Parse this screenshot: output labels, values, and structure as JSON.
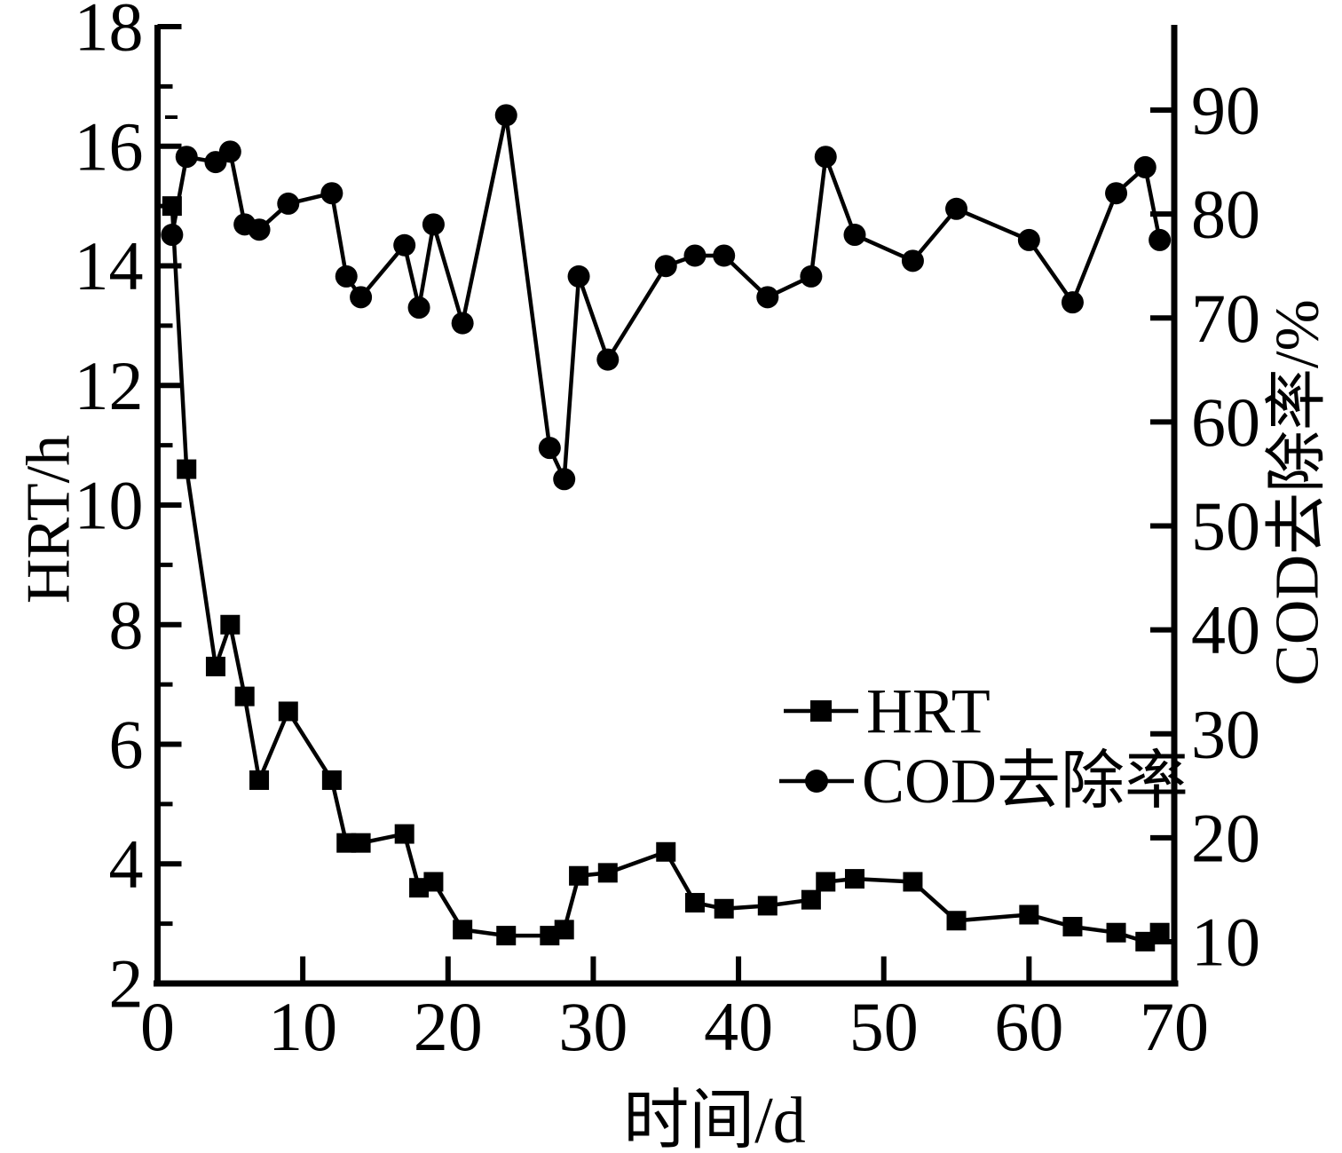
{
  "figure": {
    "background": "#ffffff",
    "ink_color": "#000000"
  },
  "chart_data": {
    "type": "line",
    "title": "",
    "xlabel": "时间/d",
    "ylabel_left": "HRT/h",
    "ylabel_right": "COD去除率/%",
    "grid": "off",
    "x_axis": {
      "min": 0,
      "max": 70,
      "major_ticks": [
        0,
        10,
        20,
        30,
        40,
        50,
        60,
        70
      ],
      "tick_labels": [
        "0",
        "10",
        "20",
        "30",
        "40",
        "50",
        "60",
        "70"
      ]
    },
    "y_left_axis": {
      "min": 2,
      "max": 18,
      "major_ticks": [
        2,
        4,
        6,
        8,
        10,
        12,
        14,
        16,
        18
      ],
      "minor_ticks": [
        3,
        5,
        7,
        9,
        11,
        13,
        15,
        17
      ],
      "tick_labels": [
        "2",
        "4",
        "6",
        "8",
        "10",
        "12",
        "14",
        "16",
        "18"
      ]
    },
    "y_right_axis": {
      "min": 6,
      "max": 98,
      "major_ticks": [
        10,
        20,
        30,
        40,
        50,
        60,
        70,
        80,
        90
      ],
      "tick_labels": [
        "10",
        "20",
        "30",
        "40",
        "50",
        "60",
        "70",
        "80",
        "90"
      ]
    },
    "legend": {
      "position": "inside-right-middle",
      "entries": [
        {
          "label": "HRT",
          "marker": "square",
          "axis": "left"
        },
        {
          "label": "COD去除率",
          "marker": "circle",
          "axis": "right"
        }
      ]
    },
    "series": [
      {
        "name": "HRT",
        "axis": "left",
        "marker": "square",
        "color": "#000000",
        "x": [
          1,
          2,
          4,
          5,
          6,
          7,
          9,
          12,
          13,
          14,
          17,
          18,
          19,
          21,
          24,
          27,
          28,
          29,
          31,
          35,
          37,
          39,
          42,
          45,
          46,
          48,
          52,
          55,
          60,
          63,
          66,
          68,
          69
        ],
        "y": [
          15.0,
          10.6,
          7.3,
          8.0,
          6.8,
          5.4,
          6.55,
          5.4,
          4.35,
          4.35,
          4.5,
          3.6,
          3.7,
          2.9,
          2.8,
          2.8,
          2.9,
          3.8,
          3.85,
          4.2,
          3.35,
          3.25,
          3.3,
          3.4,
          3.7,
          3.75,
          3.7,
          3.05,
          3.15,
          2.95,
          2.85,
          2.7,
          2.85
        ]
      },
      {
        "name": "COD去除率",
        "axis": "right",
        "marker": "circle",
        "color": "#000000",
        "x": [
          1,
          2,
          4,
          5,
          6,
          7,
          9,
          12,
          13,
          14,
          17,
          18,
          19,
          21,
          24,
          27,
          28,
          29,
          31,
          35,
          37,
          39,
          42,
          45,
          46,
          48,
          52,
          55,
          60,
          63,
          66,
          68,
          69
        ],
        "y": [
          78,
          85.5,
          85,
          86,
          79,
          78.5,
          81,
          82,
          74,
          72,
          77,
          71,
          79,
          69.5,
          89.5,
          57.5,
          54.5,
          74,
          66,
          75,
          76,
          76,
          72,
          74,
          85.5,
          78,
          75.5,
          80.5,
          77.5,
          71.5,
          82,
          84.5,
          77.5
        ]
      }
    ]
  }
}
